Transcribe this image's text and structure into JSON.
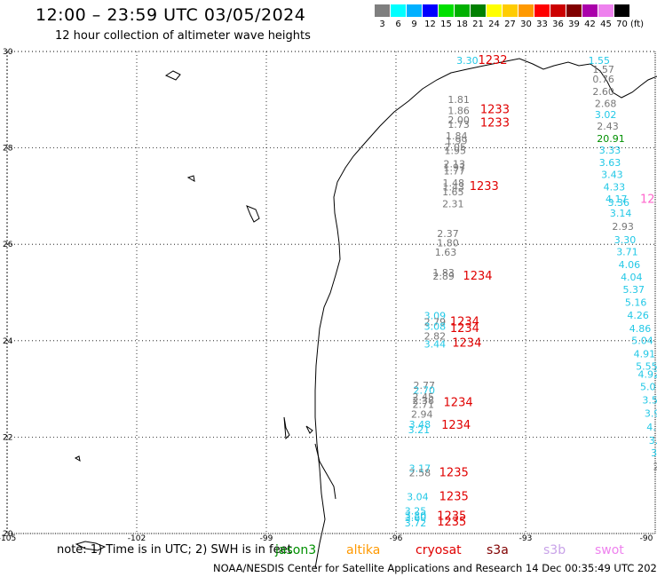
{
  "title": "12:00 – 23:59 UTC 03/05/2024",
  "subtitle": "12 hour collection of altimeter wave heights",
  "legend": {
    "labels": [
      "3",
      "6",
      "9",
      "12",
      "15",
      "18",
      "21",
      "24",
      "27",
      "30",
      "33",
      "36",
      "39",
      "42",
      "45",
      "70"
    ],
    "colors": [
      "#7f7f7f",
      "#00ffff",
      "#00b0ff",
      "#0000ff",
      "#00e000",
      "#00b000",
      "#008000",
      "#ffff00",
      "#ffcc00",
      "#ff9900",
      "#ff0000",
      "#cc0000",
      "#800000",
      "#aa00aa",
      "#ee82ee",
      "#000000"
    ],
    "unit": "(ft)"
  },
  "map": {
    "lat_labels": [
      "30",
      "28",
      "26",
      "24",
      "22",
      "20"
    ],
    "lon_labels": [
      "-105",
      "-102",
      "-99",
      "-96",
      "-93",
      "-90"
    ],
    "annotations": [
      {
        "text": "3.30",
        "lon": -94.6,
        "lat": 29.74,
        "color": "#22c8e6",
        "size": 11
      },
      {
        "text": "1232",
        "lon": -94.1,
        "lat": 29.74,
        "color": "#e00000",
        "size": 13
      },
      {
        "text": "1.55",
        "lon": -91.55,
        "lat": 29.74,
        "color": "#22c8e6",
        "size": 11
      },
      {
        "text": "1.57",
        "lon": -91.45,
        "lat": 29.56,
        "color": "#777777",
        "size": 11
      },
      {
        "text": "0.76",
        "lon": -91.45,
        "lat": 29.36,
        "color": "#777777",
        "size": 11
      },
      {
        "text": "2.60",
        "lon": -91.45,
        "lat": 29.1,
        "color": "#777777",
        "size": 11
      },
      {
        "text": "2.68",
        "lon": -91.4,
        "lat": 28.85,
        "color": "#777777",
        "size": 11
      },
      {
        "text": "3.02",
        "lon": -91.4,
        "lat": 28.62,
        "color": "#22c8e6",
        "size": 11
      },
      {
        "text": "2.43",
        "lon": -91.35,
        "lat": 28.38,
        "color": "#777777",
        "size": 11
      },
      {
        "text": "20.91",
        "lon": -91.35,
        "lat": 28.12,
        "color": "#009000",
        "size": 11
      },
      {
        "text": "3.33",
        "lon": -91.3,
        "lat": 27.88,
        "color": "#22c8e6",
        "size": 11
      },
      {
        "text": "3.63",
        "lon": -91.3,
        "lat": 27.62,
        "color": "#22c8e6",
        "size": 11
      },
      {
        "text": "3.43",
        "lon": -91.25,
        "lat": 27.38,
        "color": "#22c8e6",
        "size": 11
      },
      {
        "text": "4.33",
        "lon": -91.2,
        "lat": 27.12,
        "color": "#22c8e6",
        "size": 11
      },
      {
        "text": "4.17",
        "lon": -91.15,
        "lat": 26.87,
        "color": "#22c8e6",
        "size": 11
      },
      {
        "text": "3.36",
        "lon": -91.1,
        "lat": 26.8,
        "color": "#22c8e6",
        "size": 11
      },
      {
        "text": "12",
        "lon": -90.35,
        "lat": 26.86,
        "color": "#ff66cc",
        "size": 13
      },
      {
        "text": "3.14",
        "lon": -91.05,
        "lat": 26.57,
        "color": "#22c8e6",
        "size": 11
      },
      {
        "text": "2.93",
        "lon": -91.0,
        "lat": 26.3,
        "color": "#777777",
        "size": 11
      },
      {
        "text": "3.30",
        "lon": -90.95,
        "lat": 26.02,
        "color": "#22c8e6",
        "size": 11
      },
      {
        "text": "3.71",
        "lon": -90.9,
        "lat": 25.77,
        "color": "#22c8e6",
        "size": 11
      },
      {
        "text": "4.06",
        "lon": -90.85,
        "lat": 25.51,
        "color": "#22c8e6",
        "size": 11
      },
      {
        "text": "4.04",
        "lon": -90.8,
        "lat": 25.25,
        "color": "#22c8e6",
        "size": 11
      },
      {
        "text": "5.37",
        "lon": -90.75,
        "lat": 24.99,
        "color": "#22c8e6",
        "size": 11
      },
      {
        "text": "5.16",
        "lon": -90.7,
        "lat": 24.72,
        "color": "#22c8e6",
        "size": 11
      },
      {
        "text": "4.26",
        "lon": -90.65,
        "lat": 24.46,
        "color": "#22c8e6",
        "size": 11
      },
      {
        "text": "4.86",
        "lon": -90.6,
        "lat": 24.18,
        "color": "#22c8e6",
        "size": 11
      },
      {
        "text": "5.04",
        "lon": -90.55,
        "lat": 23.93,
        "color": "#22c8e6",
        "size": 11
      },
      {
        "text": "4.91",
        "lon": -90.5,
        "lat": 23.66,
        "color": "#22c8e6",
        "size": 11
      },
      {
        "text": "5.55",
        "lon": -90.45,
        "lat": 23.4,
        "color": "#22c8e6",
        "size": 11
      },
      {
        "text": "4.92",
        "lon": -90.4,
        "lat": 23.23,
        "color": "#22c8e6",
        "size": 11
      },
      {
        "text": "5.0",
        "lon": -90.35,
        "lat": 22.97,
        "color": "#22c8e6",
        "size": 11
      },
      {
        "text": "3.5",
        "lon": -90.3,
        "lat": 22.7,
        "color": "#22c8e6",
        "size": 11
      },
      {
        "text": "3.9",
        "lon": -90.25,
        "lat": 22.42,
        "color": "#22c8e6",
        "size": 11
      },
      {
        "text": "4.",
        "lon": -90.2,
        "lat": 22.14,
        "color": "#22c8e6",
        "size": 11
      },
      {
        "text": "3.",
        "lon": -90.15,
        "lat": 21.86,
        "color": "#22c8e6",
        "size": 11
      },
      {
        "text": "3.",
        "lon": -90.1,
        "lat": 21.6,
        "color": "#22c8e6",
        "size": 11
      },
      {
        "text": "2",
        "lon": -90.05,
        "lat": 21.32,
        "color": "#777777",
        "size": 11
      },
      {
        "text": "1.81",
        "lon": -94.8,
        "lat": 28.93,
        "color": "#777777",
        "size": 11
      },
      {
        "text": "1.86",
        "lon": -94.8,
        "lat": 28.7,
        "color": "#777777",
        "size": 11
      },
      {
        "text": "1233",
        "lon": -94.05,
        "lat": 28.72,
        "color": "#e00000",
        "size": 13
      },
      {
        "text": "2.00",
        "lon": -94.8,
        "lat": 28.51,
        "color": "#777777",
        "size": 11
      },
      {
        "text": "1.73",
        "lon": -94.8,
        "lat": 28.42,
        "color": "#777777",
        "size": 11
      },
      {
        "text": "1233",
        "lon": -94.05,
        "lat": 28.44,
        "color": "#e00000",
        "size": 13
      },
      {
        "text": "1.84",
        "lon": -94.85,
        "lat": 28.18,
        "color": "#777777",
        "size": 11
      },
      {
        "text": "1.99",
        "lon": -94.85,
        "lat": 28.08,
        "color": "#777777",
        "size": 11
      },
      {
        "text": "2.05",
        "lon": -94.88,
        "lat": 27.95,
        "color": "#777777",
        "size": 11
      },
      {
        "text": "1.95",
        "lon": -94.88,
        "lat": 27.87,
        "color": "#777777",
        "size": 11
      },
      {
        "text": "2.13",
        "lon": -94.9,
        "lat": 27.6,
        "color": "#777777",
        "size": 11
      },
      {
        "text": "1.97",
        "lon": -94.9,
        "lat": 27.52,
        "color": "#777777",
        "size": 11
      },
      {
        "text": "1.77",
        "lon": -94.9,
        "lat": 27.45,
        "color": "#777777",
        "size": 11
      },
      {
        "text": "1.48",
        "lon": -94.92,
        "lat": 27.2,
        "color": "#777777",
        "size": 11
      },
      {
        "text": "1.43",
        "lon": -94.92,
        "lat": 27.12,
        "color": "#777777",
        "size": 11
      },
      {
        "text": "1233",
        "lon": -94.3,
        "lat": 27.13,
        "color": "#e00000",
        "size": 13
      },
      {
        "text": "1.65",
        "lon": -94.93,
        "lat": 27.02,
        "color": "#777777",
        "size": 11
      },
      {
        "text": "2.31",
        "lon": -94.93,
        "lat": 26.77,
        "color": "#777777",
        "size": 11
      },
      {
        "text": "2.37",
        "lon": -95.05,
        "lat": 26.15,
        "color": "#777777",
        "size": 11
      },
      {
        "text": "1.80",
        "lon": -95.05,
        "lat": 25.96,
        "color": "#777777",
        "size": 11
      },
      {
        "text": "1.63",
        "lon": -95.1,
        "lat": 25.76,
        "color": "#777777",
        "size": 11
      },
      {
        "text": "1.83",
        "lon": -95.15,
        "lat": 25.34,
        "color": "#777777",
        "size": 11
      },
      {
        "text": "2.89",
        "lon": -95.15,
        "lat": 25.27,
        "color": "#777777",
        "size": 11
      },
      {
        "text": "1234",
        "lon": -94.45,
        "lat": 25.27,
        "color": "#e00000",
        "size": 13
      },
      {
        "text": "3.09",
        "lon": -95.35,
        "lat": 24.45,
        "color": "#22c8e6",
        "size": 11
      },
      {
        "text": "2.79",
        "lon": -95.35,
        "lat": 24.32,
        "color": "#777777",
        "size": 11
      },
      {
        "text": "1234",
        "lon": -94.75,
        "lat": 24.32,
        "color": "#e00000",
        "size": 13
      },
      {
        "text": "3.08",
        "lon": -95.35,
        "lat": 24.23,
        "color": "#22c8e6",
        "size": 11
      },
      {
        "text": "1234",
        "lon": -94.75,
        "lat": 24.18,
        "color": "#e00000",
        "size": 13
      },
      {
        "text": "2.82",
        "lon": -95.35,
        "lat": 24.02,
        "color": "#777777",
        "size": 11
      },
      {
        "text": "3.44",
        "lon": -95.35,
        "lat": 23.86,
        "color": "#22c8e6",
        "size": 11
      },
      {
        "text": "1234",
        "lon": -94.7,
        "lat": 23.88,
        "color": "#e00000",
        "size": 13
      },
      {
        "text": "2.77",
        "lon": -95.6,
        "lat": 23.0,
        "color": "#777777",
        "size": 11
      },
      {
        "text": "2.70",
        "lon": -95.6,
        "lat": 22.9,
        "color": "#22c8e6",
        "size": 11
      },
      {
        "text": "2.45",
        "lon": -95.62,
        "lat": 22.76,
        "color": "#777777",
        "size": 11
      },
      {
        "text": "2.38",
        "lon": -95.62,
        "lat": 22.69,
        "color": "#777777",
        "size": 11
      },
      {
        "text": "2.71",
        "lon": -95.62,
        "lat": 22.61,
        "color": "#777777",
        "size": 11
      },
      {
        "text": "1234",
        "lon": -94.9,
        "lat": 22.64,
        "color": "#e00000",
        "size": 13
      },
      {
        "text": "2.94",
        "lon": -95.65,
        "lat": 22.4,
        "color": "#777777",
        "size": 11
      },
      {
        "text": "3.48",
        "lon": -95.7,
        "lat": 22.19,
        "color": "#22c8e6",
        "size": 11
      },
      {
        "text": "1234",
        "lon": -94.95,
        "lat": 22.17,
        "color": "#e00000",
        "size": 13
      },
      {
        "text": "3.21",
        "lon": -95.72,
        "lat": 22.08,
        "color": "#22c8e6",
        "size": 11
      },
      {
        "text": "3.17",
        "lon": -95.7,
        "lat": 21.28,
        "color": "#22c8e6",
        "size": 11
      },
      {
        "text": "2.58",
        "lon": -95.7,
        "lat": 21.19,
        "color": "#777777",
        "size": 11
      },
      {
        "text": "1235",
        "lon": -95.0,
        "lat": 21.19,
        "color": "#e00000",
        "size": 13
      },
      {
        "text": "3.04",
        "lon": -95.75,
        "lat": 20.69,
        "color": "#22c8e6",
        "size": 11
      },
      {
        "text": "1235",
        "lon": -95.0,
        "lat": 20.69,
        "color": "#e00000",
        "size": 13
      },
      {
        "text": "3.25",
        "lon": -95.8,
        "lat": 20.4,
        "color": "#22c8e6",
        "size": 11
      },
      {
        "text": "3.30",
        "lon": -95.8,
        "lat": 20.3,
        "color": "#22c8e6",
        "size": 11
      },
      {
        "text": "3.60",
        "lon": -95.8,
        "lat": 20.26,
        "color": "#22c8e6",
        "size": 11
      },
      {
        "text": "1235",
        "lon": -95.05,
        "lat": 20.29,
        "color": "#e00000",
        "size": 13
      },
      {
        "text": "3.72",
        "lon": -95.8,
        "lat": 20.15,
        "color": "#22c8e6",
        "size": 11
      },
      {
        "text": "1235",
        "lon": -95.05,
        "lat": 20.17,
        "color": "#e00000",
        "size": 13
      }
    ]
  },
  "footer": {
    "note": "note:  1) Time is in UTC; 2) SWH is in feet",
    "satellites": [
      {
        "name": "jason3",
        "color": "#009000"
      },
      {
        "name": "altika",
        "color": "#ff9900"
      },
      {
        "name": "cryosat",
        "color": "#e00000"
      },
      {
        "name": "s3a",
        "color": "#800000"
      },
      {
        "name": "s3b",
        "color": "#c8a2e8"
      },
      {
        "name": "swot",
        "color": "#ee82ee"
      }
    ],
    "credit": "NOAA/NESDIS Center for Satellite Applications and Research    14 Dec 00:35:49 UTC 2024"
  }
}
